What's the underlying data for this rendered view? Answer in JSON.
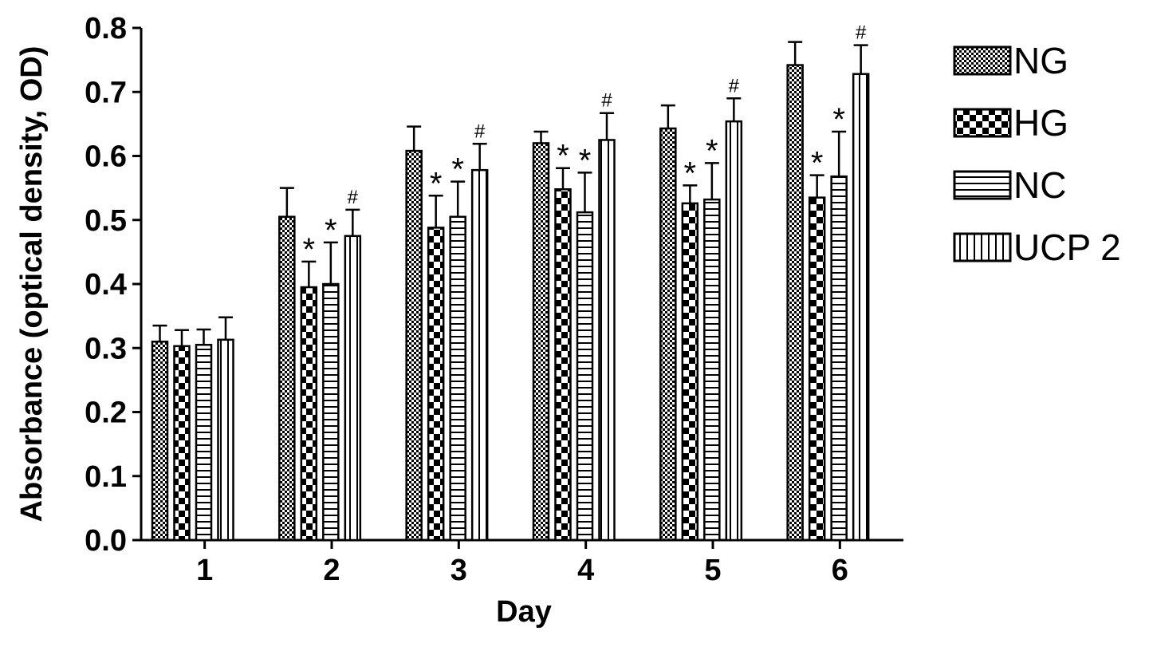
{
  "chart_data": {
    "type": "bar",
    "title": "",
    "xlabel": "Day",
    "ylabel": "Absorbance (optical density, OD)",
    "categories": [
      "1",
      "2",
      "3",
      "4",
      "5",
      "6"
    ],
    "ylim": [
      0,
      0.8
    ],
    "yticks": [
      "0.0",
      "0.1",
      "0.2",
      "0.3",
      "0.4",
      "0.5",
      "0.6",
      "0.7",
      "0.8"
    ],
    "legend_position": "right",
    "grid": false,
    "series": [
      {
        "name": "NG",
        "pattern": "dotted",
        "values": [
          0.31,
          0.505,
          0.608,
          0.62,
          0.643,
          0.742
        ],
        "errors": [
          0.025,
          0.045,
          0.038,
          0.018,
          0.036,
          0.036
        ],
        "annotations": [
          "",
          "",
          "",
          "",
          "",
          ""
        ]
      },
      {
        "name": "HG",
        "pattern": "checkered",
        "values": [
          0.303,
          0.395,
          0.488,
          0.548,
          0.526,
          0.535
        ],
        "errors": [
          0.025,
          0.04,
          0.05,
          0.033,
          0.028,
          0.035
        ],
        "annotations": [
          "",
          "*",
          "*",
          "*",
          "*",
          "*"
        ]
      },
      {
        "name": "NC",
        "pattern": "horizontal",
        "values": [
          0.305,
          0.4,
          0.505,
          0.512,
          0.532,
          0.568
        ],
        "errors": [
          0.024,
          0.065,
          0.055,
          0.062,
          0.057,
          0.07
        ],
        "annotations": [
          "",
          "*",
          "*",
          "*",
          "*",
          "*"
        ]
      },
      {
        "name": "UCP 2",
        "pattern": "vertical",
        "values": [
          0.313,
          0.475,
          0.578,
          0.625,
          0.654,
          0.728
        ],
        "errors": [
          0.035,
          0.041,
          0.041,
          0.042,
          0.036,
          0.045
        ],
        "annotations": [
          "",
          "#",
          "#",
          "#",
          "#",
          "#"
        ]
      }
    ],
    "colors": {
      "ink": "#000000",
      "fill": "#ffffff"
    }
  }
}
